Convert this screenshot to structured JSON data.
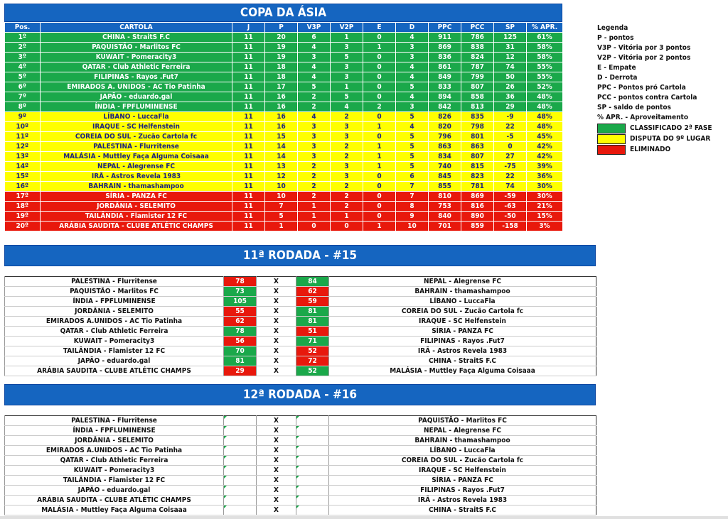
{
  "title": "COPA DA ÁSIA",
  "columns": [
    "Pos.",
    "CARTOLA",
    "J",
    "P",
    "V3P",
    "V2P",
    "E",
    "D",
    "PPC",
    "PCC",
    "SP",
    "% APR."
  ],
  "standings": [
    {
      "pos": "1º",
      "team": "CHINA - StraitS F.C",
      "j": "11",
      "p": "20",
      "v3p": "6",
      "v2p": "1",
      "e": "0",
      "d": "4",
      "ppc": "911",
      "pcc": "786",
      "sp": "125",
      "apr": "61%",
      "zone": "g"
    },
    {
      "pos": "2º",
      "team": "PAQUISTÃO - Marlitos FC",
      "j": "11",
      "p": "19",
      "v3p": "4",
      "v2p": "3",
      "e": "1",
      "d": "3",
      "ppc": "869",
      "pcc": "838",
      "sp": "31",
      "apr": "58%",
      "zone": "g"
    },
    {
      "pos": "3º",
      "team": "KUWAIT - Pomeracity3",
      "j": "11",
      "p": "19",
      "v3p": "3",
      "v2p": "5",
      "e": "0",
      "d": "3",
      "ppc": "836",
      "pcc": "824",
      "sp": "12",
      "apr": "58%",
      "zone": "g"
    },
    {
      "pos": "4º",
      "team": "QATAR - Club Athletic Ferreira",
      "j": "11",
      "p": "18",
      "v3p": "4",
      "v2p": "3",
      "e": "0",
      "d": "4",
      "ppc": "861",
      "pcc": "787",
      "sp": "74",
      "apr": "55%",
      "zone": "g"
    },
    {
      "pos": "5º",
      "team": "FILIPINAS - Rayos .Fut7",
      "j": "11",
      "p": "18",
      "v3p": "4",
      "v2p": "3",
      "e": "0",
      "d": "4",
      "ppc": "849",
      "pcc": "799",
      "sp": "50",
      "apr": "55%",
      "zone": "g"
    },
    {
      "pos": "6º",
      "team": "EMIRADOS A. UNIDOS - AC Tio Patinha",
      "j": "11",
      "p": "17",
      "v3p": "5",
      "v2p": "1",
      "e": "0",
      "d": "5",
      "ppc": "833",
      "pcc": "807",
      "sp": "26",
      "apr": "52%",
      "zone": "g"
    },
    {
      "pos": "7º",
      "team": "JAPÃO - eduardo.gal",
      "j": "11",
      "p": "16",
      "v3p": "2",
      "v2p": "5",
      "e": "0",
      "d": "4",
      "ppc": "894",
      "pcc": "858",
      "sp": "36",
      "apr": "48%",
      "zone": "g"
    },
    {
      "pos": "8º",
      "team": "ÍNDIA - FPFLUMINENSE",
      "j": "11",
      "p": "16",
      "v3p": "2",
      "v2p": "4",
      "e": "2",
      "d": "3",
      "ppc": "842",
      "pcc": "813",
      "sp": "29",
      "apr": "48%",
      "zone": "g"
    },
    {
      "pos": "9º",
      "team": "LÍBANO - LuccaFla",
      "j": "11",
      "p": "16",
      "v3p": "4",
      "v2p": "2",
      "e": "0",
      "d": "5",
      "ppc": "826",
      "pcc": "835",
      "sp": "-9",
      "apr": "48%",
      "zone": "y"
    },
    {
      "pos": "10º",
      "team": "IRAQUE - SC Helfenstein",
      "j": "11",
      "p": "16",
      "v3p": "3",
      "v2p": "3",
      "e": "1",
      "d": "4",
      "ppc": "820",
      "pcc": "798",
      "sp": "22",
      "apr": "48%",
      "zone": "y"
    },
    {
      "pos": "11º",
      "team": "COREIA DO SUL - Zucão Cartola fc",
      "j": "11",
      "p": "15",
      "v3p": "3",
      "v2p": "3",
      "e": "0",
      "d": "5",
      "ppc": "796",
      "pcc": "801",
      "sp": "-5",
      "apr": "45%",
      "zone": "y"
    },
    {
      "pos": "12º",
      "team": "PALESTINA - Flurritense",
      "j": "11",
      "p": "14",
      "v3p": "3",
      "v2p": "2",
      "e": "1",
      "d": "5",
      "ppc": "863",
      "pcc": "863",
      "sp": "0",
      "apr": "42%",
      "zone": "y"
    },
    {
      "pos": "13º",
      "team": "MALÁSIA - Muttley Faça Alguma Coisaaa",
      "j": "11",
      "p": "14",
      "v3p": "3",
      "v2p": "2",
      "e": "1",
      "d": "5",
      "ppc": "834",
      "pcc": "807",
      "sp": "27",
      "apr": "42%",
      "zone": "y"
    },
    {
      "pos": "14º",
      "team": "NEPAL - Alegrense FC",
      "j": "11",
      "p": "13",
      "v3p": "2",
      "v2p": "3",
      "e": "1",
      "d": "5",
      "ppc": "740",
      "pcc": "815",
      "sp": "-75",
      "apr": "39%",
      "zone": "y"
    },
    {
      "pos": "15º",
      "team": "IRÃ - Astros Revela 1983",
      "j": "11",
      "p": "12",
      "v3p": "2",
      "v2p": "3",
      "e": "0",
      "d": "6",
      "ppc": "845",
      "pcc": "823",
      "sp": "22",
      "apr": "36%",
      "zone": "y"
    },
    {
      "pos": "16º",
      "team": "BAHRAIN - thamashampoo",
      "j": "11",
      "p": "10",
      "v3p": "2",
      "v2p": "2",
      "e": "0",
      "d": "7",
      "ppc": "855",
      "pcc": "781",
      "sp": "74",
      "apr": "30%",
      "zone": "y"
    },
    {
      "pos": "17º",
      "team": "SÍRIA - PANZA FC",
      "j": "11",
      "p": "10",
      "v3p": "2",
      "v2p": "2",
      "e": "0",
      "d": "7",
      "ppc": "810",
      "pcc": "869",
      "sp": "-59",
      "apr": "30%",
      "zone": "r"
    },
    {
      "pos": "18º",
      "team": "JORDÂNIA - SELEMITO",
      "j": "11",
      "p": "7",
      "v3p": "1",
      "v2p": "2",
      "e": "0",
      "d": "8",
      "ppc": "753",
      "pcc": "816",
      "sp": "-63",
      "apr": "21%",
      "zone": "r"
    },
    {
      "pos": "19º",
      "team": "TAILÂNDIA - Flamister 12 FC",
      "j": "11",
      "p": "5",
      "v3p": "1",
      "v2p": "1",
      "e": "0",
      "d": "9",
      "ppc": "840",
      "pcc": "890",
      "sp": "-50",
      "apr": "15%",
      "zone": "r"
    },
    {
      "pos": "20º",
      "team": "ARÁBIA SAUDITA - CLUBE ATLÉTIC CHAMPS",
      "j": "11",
      "p": "1",
      "v3p": "0",
      "v2p": "0",
      "e": "1",
      "d": "10",
      "ppc": "701",
      "pcc": "859",
      "sp": "-158",
      "apr": "3%",
      "zone": "r"
    }
  ],
  "legend": {
    "title": "Legenda",
    "items": [
      "P - pontos",
      "V3P - Vitória por 3 pontos",
      "V2P - Vitória por 2 pontos",
      "E - Empate",
      "D - Derrota",
      "PPC - Pontos pró Cartola",
      "PCC - pontos contra Cartola",
      "SP - saldo de pontos",
      "% APR. - Aproveitamento"
    ],
    "boxes": [
      {
        "label": "CLASSIFICADO 2ª FASE",
        "color": "#1aa84a"
      },
      {
        "label": "DISPUTA DO 9º LUGAR",
        "color": "#ffff00"
      },
      {
        "label": "ELIMINADO",
        "color": "#e8180c"
      }
    ]
  },
  "round11": {
    "title": "11ª RODADA - #15",
    "vs": "X",
    "matches": [
      {
        "home": "PALESTINA - Flurritense",
        "hs": "78",
        "hc": "r",
        "as": "84",
        "ac": "g",
        "away": "NEPAL - Alegrense FC"
      },
      {
        "home": "PAQUISTÃO - Marlitos FC",
        "hs": "73",
        "hc": "g",
        "as": "62",
        "ac": "r",
        "away": "BAHRAIN - thamashampoo"
      },
      {
        "home": "ÍNDIA - FPFLUMINENSE",
        "hs": "105",
        "hc": "g",
        "as": "59",
        "ac": "r",
        "away": "LÍBANO - LuccaFla"
      },
      {
        "home": "JORDÂNIA - SELEMITO",
        "hs": "55",
        "hc": "r",
        "as": "81",
        "ac": "g",
        "away": "COREIA DO SUL - Zucão Cartola fc"
      },
      {
        "home": "EMIRADOS A.UNIDOS - AC Tio Patinha",
        "hs": "62",
        "hc": "r",
        "as": "81",
        "ac": "g",
        "away": "IRAQUE - SC Helfenstein"
      },
      {
        "home": "QATAR - Club Athletic Ferreira",
        "hs": "78",
        "hc": "g",
        "as": "51",
        "ac": "r",
        "away": "SÍRIA - PANZA FC"
      },
      {
        "home": "KUWAIT - Pomeracity3",
        "hs": "56",
        "hc": "r",
        "as": "71",
        "ac": "g",
        "away": "FILIPINAS - Rayos .Fut7"
      },
      {
        "home": "TAILÂNDIA - Flamister 12 FC",
        "hs": "70",
        "hc": "g",
        "as": "52",
        "ac": "r",
        "away": "IRÃ - Astros Revela 1983"
      },
      {
        "home": "JAPÃO - eduardo.gal",
        "hs": "81",
        "hc": "g",
        "as": "72",
        "ac": "r",
        "away": "CHINA - StraitS F.C"
      },
      {
        "home": "ARÁBIA SAUDITA - CLUBE ATLÉTIC CHAMPS",
        "hs": "29",
        "hc": "r",
        "as": "52",
        "ac": "g",
        "away": "MALÁSIA - Muttley Faça Alguma Coisaaa"
      }
    ]
  },
  "round12": {
    "title": "12ª RODADA - #16",
    "vs": "X",
    "matches": [
      {
        "home": "PALESTINA - Flurritense",
        "away": "PAQUISTÃO - Marlitos FC"
      },
      {
        "home": "ÍNDIA - FPFLUMINENSE",
        "away": "NEPAL - Alegrense FC"
      },
      {
        "home": "JORDÂNIA - SELEMITO",
        "away": "BAHRAIN - thamashampoo"
      },
      {
        "home": "EMIRADOS A.UNIDOS - AC Tio Patinha",
        "away": "LÍBANO - LuccaFla"
      },
      {
        "home": "QATAR - Club Athletic Ferreira",
        "away": "COREIA DO SUL - Zucão Cartola fc"
      },
      {
        "home": "KUWAIT - Pomeracity3",
        "away": "IRAQUE - SC Helfenstein"
      },
      {
        "home": "TAILÂNDIA - Flamister 12 FC",
        "away": "SÍRIA - PANZA FC"
      },
      {
        "home": "JAPÃO - eduardo.gal",
        "away": "FILIPINAS - Rayos .Fut7"
      },
      {
        "home": "ARÁBIA SAUDITA - CLUBE ATLÉTIC CHAMPS",
        "away": "IRÃ - Astros Revela 1983"
      },
      {
        "home": "MALÁSIA - Muttley Faça Alguma Coisaaa",
        "away": "CHINA - StraitS F.C"
      }
    ]
  }
}
